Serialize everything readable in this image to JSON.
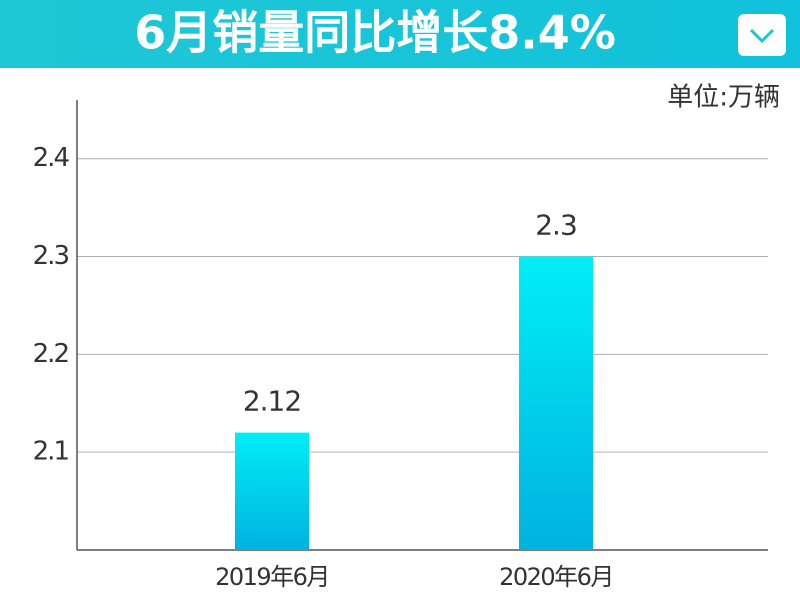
{
  "chart_data": {
    "type": "bar",
    "title": "6月销量同比增长8.4%",
    "unit_label": "单位:万辆",
    "categories": [
      "2019年6月",
      "2020年6月"
    ],
    "values": [
      2.12,
      2.3
    ],
    "gradient": [
      "#00eef6",
      "#00b2e0"
    ],
    "ylim": [
      2.0,
      2.46
    ],
    "yticks": [
      2.1,
      2.2,
      2.3,
      2.4
    ],
    "grid": true
  }
}
